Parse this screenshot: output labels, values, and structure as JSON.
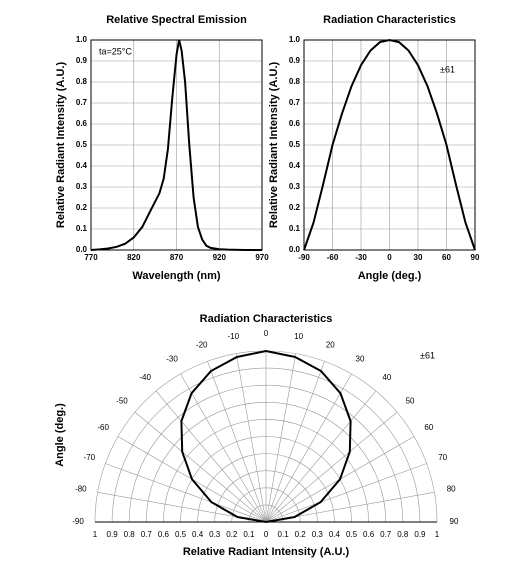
{
  "chart_data": [
    {
      "type": "line",
      "title": "Relative Spectral Emission",
      "x_label": "Wavelength (nm)",
      "y_label": "Relative Radiant Intensity (A.U.)",
      "annotation": "ta=25°C",
      "x": [
        770,
        780,
        790,
        800,
        810,
        820,
        830,
        840,
        850,
        855,
        860,
        865,
        870,
        873,
        876,
        880,
        885,
        890,
        895,
        900,
        905,
        910,
        920,
        930,
        950,
        970
      ],
      "values": [
        0,
        0.003,
        0.007,
        0.015,
        0.03,
        0.06,
        0.11,
        0.19,
        0.27,
        0.34,
        0.48,
        0.72,
        0.93,
        1,
        0.95,
        0.8,
        0.5,
        0.25,
        0.11,
        0.05,
        0.02,
        0.01,
        0.004,
        0.002,
        0,
        0
      ],
      "color": "#000000",
      "xlim": [
        770,
        970
      ],
      "xticks": [
        770,
        820,
        870,
        920,
        970
      ],
      "ylim": [
        0,
        1
      ],
      "yticks": [
        {
          "value": 0,
          "label": "0.0"
        },
        0.1,
        0.2,
        0.3,
        0.4,
        0.5,
        0.6,
        0.7,
        0.8,
        0.9,
        {
          "value": 1,
          "label": "1.0"
        }
      ],
      "grid": true
    },
    {
      "type": "line",
      "title": "Radiation Characteristics",
      "x_label": "Angle (deg.)",
      "y_label": "Relative Radiant Intensity (A.U.)",
      "annotation": "±61",
      "x": [
        -90,
        -80,
        -70,
        -60,
        -50,
        -40,
        -30,
        -20,
        -10,
        0,
        10,
        20,
        30,
        40,
        50,
        60,
        70,
        80,
        90
      ],
      "values": [
        0,
        0.13,
        0.31,
        0.5,
        0.65,
        0.78,
        0.88,
        0.95,
        0.99,
        1,
        0.99,
        0.95,
        0.88,
        0.78,
        0.65,
        0.5,
        0.31,
        0.13,
        0
      ],
      "color": "#000000",
      "xlim": [
        -90,
        90
      ],
      "xticks": [
        -90,
        -60,
        -30,
        0,
        30,
        60,
        90
      ],
      "ylim": [
        0,
        1
      ],
      "yticks": [
        {
          "value": 0,
          "label": "0.0"
        },
        0.1,
        0.2,
        0.3,
        0.4,
        0.5,
        0.6,
        0.7,
        0.8,
        0.9,
        {
          "value": 1,
          "label": "1.0"
        }
      ],
      "grid": true
    },
    {
      "type": "polar",
      "title": "Radiation Characteristics",
      "x_label": "Relative Radiant Intensity (A.U.)",
      "y_label": "Angle (deg.)",
      "annotation": "±61",
      "theta": [
        -90,
        -80,
        -70,
        -60,
        -50,
        -40,
        -30,
        -20,
        -10,
        0,
        10,
        20,
        30,
        40,
        50,
        60,
        70,
        80,
        90
      ],
      "values": [
        0,
        0.17,
        0.34,
        0.5,
        0.64,
        0.77,
        0.87,
        0.94,
        0.98,
        1,
        0.98,
        0.94,
        0.87,
        0.77,
        0.64,
        0.5,
        0.34,
        0.17,
        0
      ],
      "color": "#000000",
      "thetalim": [
        -90,
        90
      ],
      "thetaticks": [
        -90,
        -80,
        -70,
        -60,
        -50,
        -40,
        -30,
        -20,
        -10,
        0,
        10,
        20,
        30,
        40,
        50,
        60,
        70,
        80,
        90
      ],
      "rlim": [
        0,
        1
      ],
      "rticks": [
        0,
        0.1,
        0.2,
        0.3,
        0.4,
        0.5,
        0.6,
        0.7,
        0.8,
        0.9,
        1
      ],
      "grid": true
    }
  ]
}
